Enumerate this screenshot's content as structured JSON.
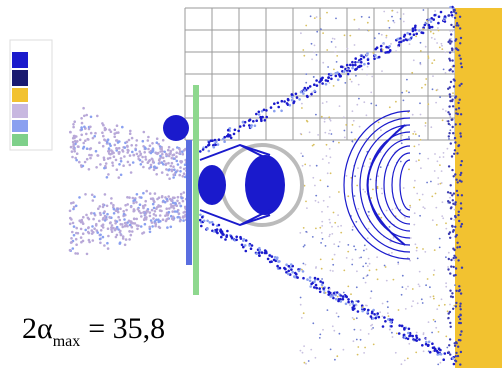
{
  "formula": {
    "main": "2α",
    "subscript": "max",
    "rhs": "= 35,8"
  }
}
